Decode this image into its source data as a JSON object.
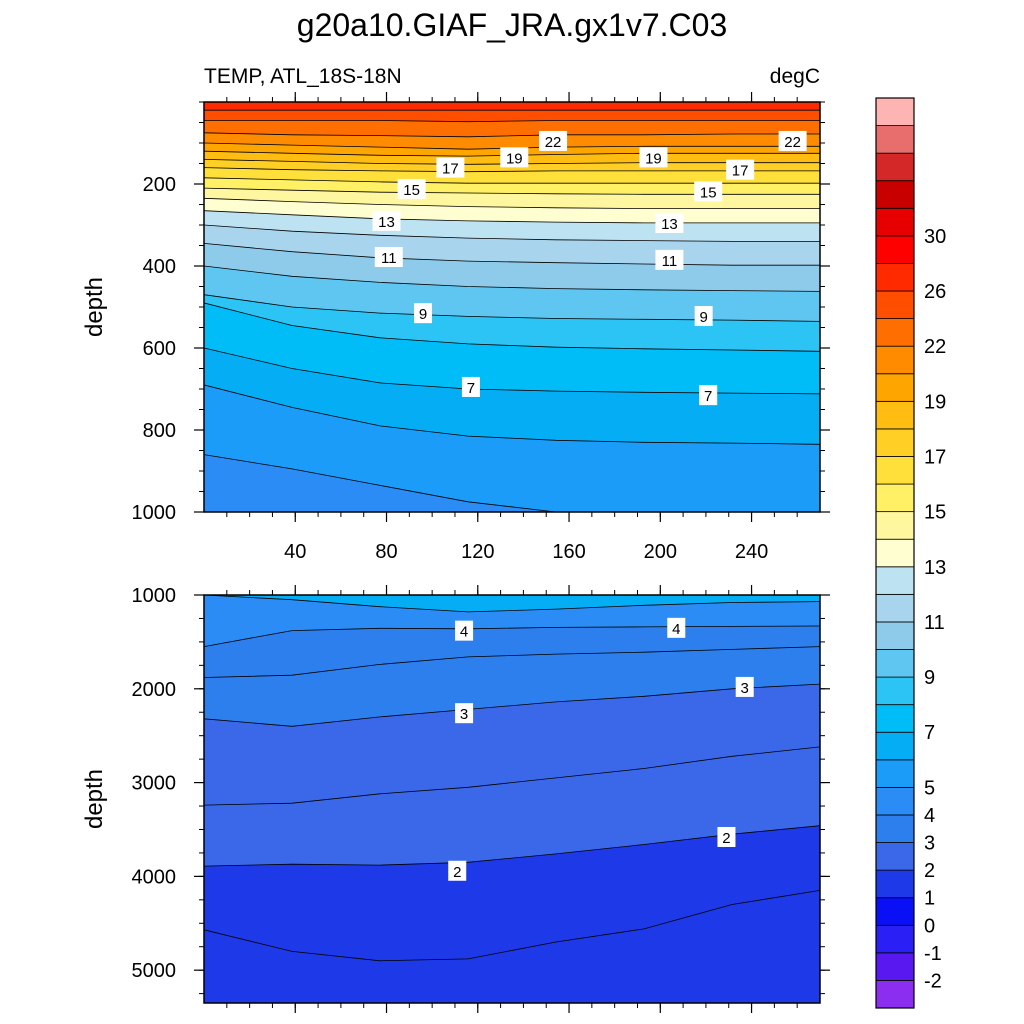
{
  "chart_data": {
    "type": "contour",
    "title": "g20a10.GIAF_JRA.gx1v7.C03",
    "variable_label": "TEMP, ATL_18S-18N",
    "units_label": "degC",
    "x_range": [
      0,
      270
    ],
    "x_ticks": [
      "40",
      "80",
      "120",
      "160",
      "200",
      "240"
    ],
    "x_tick_values": [
      40,
      80,
      120,
      160,
      200,
      240
    ],
    "colorbar": {
      "levels": [
        -2,
        -1,
        0,
        1,
        2,
        3,
        4,
        5,
        6,
        7,
        8,
        9,
        10,
        11,
        12,
        13,
        14,
        15,
        16,
        17,
        18,
        19,
        20,
        22,
        24,
        26,
        28,
        30,
        32
      ],
      "labels": [
        "-2",
        "-1",
        "0",
        "1",
        "2",
        "3",
        "4",
        "5",
        "7",
        "9",
        "11",
        "13",
        "15",
        "17",
        "19",
        "22",
        "26",
        "30"
      ],
      "label_values": [
        -2,
        -1,
        0,
        1,
        2,
        3,
        4,
        5,
        7,
        9,
        11,
        13,
        15,
        17,
        19,
        22,
        26,
        30
      ],
      "colors": [
        "#8c2ef0",
        "#5a18f0",
        "#2a1ff5",
        "#0a10f5",
        "#1e3ae8",
        "#3a68e8",
        "#2e7fee",
        "#2a8cf4",
        "#1a9cf8",
        "#05adf5",
        "#00bdf8",
        "#2cc4f4",
        "#5ec6f0",
        "#8ecbeb",
        "#a8d4ee",
        "#bde2f1",
        "#fffed0",
        "#fff7a0",
        "#fff065",
        "#ffe03b",
        "#ffcf25",
        "#ffbd12",
        "#ffa500",
        "#ff8c00",
        "#ff6e00",
        "#ff4e00",
        "#ff2a00",
        "#ff0000",
        "#e60000",
        "#c80000",
        "#d42828",
        "#e86e6e",
        "#ffb4b4"
      ]
    },
    "panels": [
      {
        "name": "upper",
        "ylabel": "depth",
        "y_range": [
          0,
          1000
        ],
        "y_ticks": [
          "200",
          "400",
          "600",
          "800",
          "1000"
        ],
        "y_tick_values": [
          200,
          400,
          600,
          800,
          1000
        ],
        "contours": [
          {
            "level": 26,
            "y": [
              20,
              20,
              20,
              20,
              20,
              20,
              20,
              20
            ]
          },
          {
            "level": 24,
            "y": [
              45,
              45,
              45,
              48,
              45,
              45,
              45,
              45
            ]
          },
          {
            "level": 22,
            "y": [
              75,
              80,
              82,
              85,
              80,
              80,
              78,
              78
            ]
          },
          {
            "level": 20,
            "y": [
              100,
              105,
              110,
              115,
              110,
              108,
              108,
              108
            ]
          },
          {
            "level": 19,
            "y": [
              120,
              125,
              130,
              132,
              128,
              125,
              125,
              125
            ]
          },
          {
            "level": 18,
            "y": [
              140,
              145,
              150,
              152,
              150,
              148,
              148,
              148
            ]
          },
          {
            "level": 17,
            "y": [
              160,
              165,
              168,
              170,
              168,
              168,
              168,
              168
            ]
          },
          {
            "level": 16,
            "y": [
              185,
              190,
              195,
              198,
              198,
              198,
              198,
              198
            ]
          },
          {
            "level": 15,
            "y": [
              210,
              215,
              220,
              222,
              224,
              225,
              225,
              225
            ]
          },
          {
            "level": 14,
            "y": [
              235,
              243,
              250,
              255,
              258,
              260,
              260,
              260
            ]
          },
          {
            "level": 13,
            "y": [
              265,
              275,
              285,
              290,
              293,
              295,
              295,
              295
            ]
          },
          {
            "level": 12,
            "y": [
              300,
              315,
              325,
              332,
              336,
              338,
              340,
              340
            ]
          },
          {
            "level": 11,
            "y": [
              345,
              365,
              380,
              388,
              392,
              395,
              398,
              398
            ]
          },
          {
            "level": 10,
            "y": [
              400,
              425,
              440,
              450,
              455,
              458,
              460,
              462
            ]
          },
          {
            "level": 9,
            "y": [
              470,
              500,
              515,
              523,
              528,
              530,
              532,
              535
            ]
          },
          {
            "level": 8,
            "y": [
              490,
              545,
              575,
              590,
              598,
              602,
              605,
              608
            ]
          },
          {
            "level": 7,
            "y": [
              600,
              650,
              685,
              700,
              705,
              708,
              710,
              712
            ]
          },
          {
            "level": 6,
            "y": [
              690,
              745,
              790,
              815,
              825,
              830,
              832,
              835
            ]
          },
          {
            "level": 5,
            "y": [
              860,
              895,
              935,
              975,
              1000,
              1000,
              1000,
              1000
            ]
          }
        ],
        "labels": [
          {
            "text": "22",
            "x": 153,
            "y": 95
          },
          {
            "text": "22",
            "x": 258,
            "y": 95
          },
          {
            "text": "19",
            "x": 136,
            "y": 135
          },
          {
            "text": "19",
            "x": 197,
            "y": 135
          },
          {
            "text": "17",
            "x": 108,
            "y": 160
          },
          {
            "text": "17",
            "x": 235,
            "y": 165
          },
          {
            "text": "15",
            "x": 91,
            "y": 212
          },
          {
            "text": "15",
            "x": 221,
            "y": 218
          },
          {
            "text": "13",
            "x": 80,
            "y": 290
          },
          {
            "text": "13",
            "x": 204,
            "y": 295
          },
          {
            "text": "11",
            "x": 81,
            "y": 378
          },
          {
            "text": "11",
            "x": 204,
            "y": 385
          },
          {
            "text": "9",
            "x": 96,
            "y": 515
          },
          {
            "text": "9",
            "x": 219,
            "y": 522
          },
          {
            "text": "7",
            "x": 117,
            "y": 695
          },
          {
            "text": "7",
            "x": 221,
            "y": 715
          }
        ]
      },
      {
        "name": "lower",
        "ylabel": "depth",
        "y_range": [
          1000,
          5350
        ],
        "y_ticks": [
          "1000",
          "2000",
          "3000",
          "4000",
          "5000"
        ],
        "y_tick_values": [
          1000,
          2000,
          3000,
          4000,
          5000
        ],
        "contours": [
          {
            "level": 5,
            "y": [
              1000,
              1050,
              1125,
              1180,
              1150,
              1110,
              1080,
              1070
            ]
          },
          {
            "level": 4,
            "y": [
              1550,
              1380,
              1355,
              1360,
              1345,
              1340,
              1335,
              1330
            ]
          },
          {
            "level": 3.5,
            "y": [
              1880,
              1855,
              1740,
              1660,
              1630,
              1610,
              1580,
              1550
            ]
          },
          {
            "level": 3,
            "y": [
              2320,
              2400,
              2300,
              2220,
              2140,
              2080,
              2000,
              1950
            ]
          },
          {
            "level": 2.5,
            "y": [
              3240,
              3220,
              3120,
              3050,
              2950,
              2850,
              2720,
              2620
            ]
          },
          {
            "level": 2,
            "y": [
              3890,
              3870,
              3880,
              3850,
              3760,
              3660,
              3550,
              3460
            ]
          },
          {
            "level": 1.5,
            "y": [
              4570,
              4800,
              4900,
              4880,
              4700,
              4560,
              4300,
              4150
            ]
          }
        ],
        "labels": [
          {
            "text": "4",
            "x": 114,
            "y": 1380
          },
          {
            "text": "4",
            "x": 207,
            "y": 1350
          },
          {
            "text": "3",
            "x": 114,
            "y": 2260
          },
          {
            "text": "3",
            "x": 237,
            "y": 1980
          },
          {
            "text": "2",
            "x": 111,
            "y": 3940
          },
          {
            "text": "2",
            "x": 229,
            "y": 3580
          }
        ]
      }
    ]
  }
}
